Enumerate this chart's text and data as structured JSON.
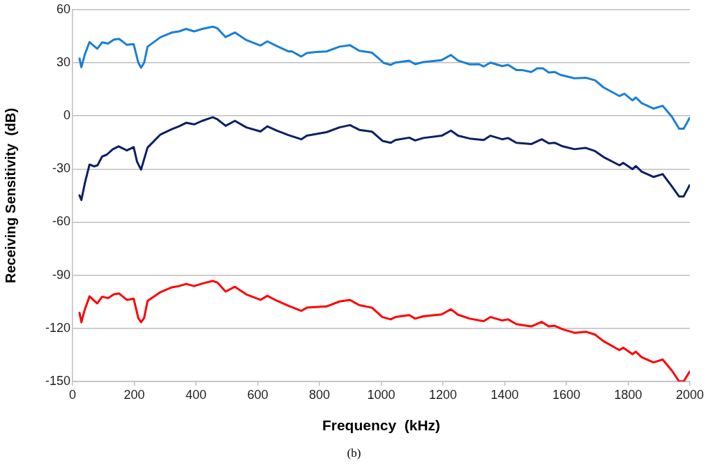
{
  "chart_data": {
    "type": "line",
    "xlabel": "Frequency  (kHz)",
    "ylabel": "Receiving Sensitivity  (dB)",
    "xlim": [
      0,
      2000
    ],
    "xticks": [
      0,
      200,
      400,
      600,
      800,
      1000,
      1200,
      1400,
      1600,
      1800,
      2000
    ],
    "ylim": [
      -150,
      60
    ],
    "yticks": [
      -150,
      -120,
      -90,
      -60,
      -30,
      0,
      30,
      60
    ],
    "grid": "y",
    "legend": false,
    "marker": "none",
    "line_style": "solid",
    "annotations": [
      "(b)"
    ],
    "series": [
      {
        "color": "#1a7fd4",
        "x": [
          22.6,
          28.6,
          40,
          55,
          80,
          96,
          115,
          134,
          151,
          176,
          198,
          213,
          222,
          232,
          243,
          285,
          322,
          345,
          368,
          394,
          420,
          454,
          469,
          496,
          526,
          563,
          609,
          631,
          661,
          699,
          710,
          741,
          759,
          789,
          823,
          865,
          899,
          929,
          970,
          985,
          1008,
          1031,
          1046,
          1091,
          1110,
          1136,
          1196,
          1226,
          1249,
          1287,
          1317,
          1332,
          1354,
          1392,
          1411,
          1438,
          1456,
          1486,
          1505,
          1524,
          1543,
          1562,
          1580,
          1626,
          1663,
          1693,
          1720,
          1772,
          1788,
          1814,
          1825,
          1844,
          1882,
          1912,
          1942,
          1965,
          1980,
          1999
        ],
        "values": [
          32.4,
          27.5,
          34.8,
          41.7,
          37.9,
          41.5,
          40.8,
          43.1,
          43.5,
          40.1,
          40.5,
          30.1,
          27.2,
          30.1,
          39.1,
          44.4,
          47.1,
          47.7,
          49.1,
          47.7,
          49.1,
          50.4,
          49.5,
          44.5,
          47.1,
          42.8,
          39.7,
          42.1,
          39.5,
          36.4,
          36.5,
          33.5,
          35.5,
          36.1,
          36.4,
          39.1,
          39.9,
          36.8,
          35.7,
          33.5,
          29.9,
          28.8,
          30.1,
          31.2,
          29.2,
          30.4,
          31.5,
          34.4,
          31.2,
          29.1,
          29.2,
          27.9,
          30.1,
          28.1,
          28.8,
          25.9,
          25.9,
          24.8,
          26.8,
          26.8,
          24.5,
          24.8,
          23.2,
          21.2,
          21.5,
          20.1,
          16.1,
          11.2,
          12.5,
          8.8,
          10.4,
          7.2,
          4.1,
          5.7,
          -0.5,
          -7.2,
          -7.2,
          -1.2
        ]
      },
      {
        "color": "#0b1f66",
        "x": [
          22.6,
          28.6,
          40,
          55,
          70,
          81,
          96,
          111,
          130,
          149,
          176,
          198,
          209,
          222,
          243,
          285,
          322,
          345,
          368,
          394,
          420,
          454,
          469,
          496,
          526,
          563,
          609,
          631,
          661,
          699,
          741,
          759,
          823,
          865,
          899,
          929,
          970,
          1004,
          1031,
          1046,
          1091,
          1110,
          1136,
          1196,
          1226,
          1249,
          1287,
          1332,
          1354,
          1392,
          1411,
          1438,
          1486,
          1520,
          1543,
          1562,
          1588,
          1626,
          1663,
          1693,
          1720,
          1772,
          1784,
          1814,
          1825,
          1844,
          1882,
          1912,
          1942,
          1965,
          1980,
          1999
        ],
        "values": [
          -44.9,
          -47.5,
          -37.9,
          -27.5,
          -28.5,
          -27.9,
          -22.9,
          -21.9,
          -18.9,
          -17.2,
          -19.5,
          -17.6,
          -25.9,
          -30.3,
          -17.9,
          -10.5,
          -7.5,
          -5.9,
          -3.9,
          -4.8,
          -2.8,
          -0.8,
          -1.9,
          -5.6,
          -2.8,
          -6.5,
          -8.8,
          -5.9,
          -8.3,
          -10.8,
          -13.2,
          -11.2,
          -9.2,
          -6.5,
          -5.2,
          -7.9,
          -8.9,
          -14.1,
          -15.2,
          -13.6,
          -12.3,
          -13.9,
          -12.5,
          -11.2,
          -8.3,
          -11.2,
          -12.8,
          -13.6,
          -11.2,
          -13.2,
          -12.5,
          -15.2,
          -15.9,
          -13.2,
          -15.5,
          -15.2,
          -17.2,
          -18.8,
          -18.1,
          -19.9,
          -23.2,
          -27.9,
          -26.5,
          -30.1,
          -28.3,
          -31.5,
          -34.5,
          -32.9,
          -39.9,
          -45.5,
          -45.5,
          -39.2
        ]
      },
      {
        "color": "#ff0000",
        "x": [
          22.6,
          28.6,
          40,
          55,
          80,
          96,
          115,
          134,
          151,
          176,
          198,
          213,
          222,
          232,
          243,
          285,
          322,
          345,
          368,
          394,
          420,
          454,
          469,
          496,
          526,
          563,
          609,
          631,
          661,
          699,
          741,
          759,
          823,
          865,
          899,
          929,
          970,
          1004,
          1031,
          1046,
          1091,
          1110,
          1136,
          1196,
          1226,
          1249,
          1287,
          1332,
          1354,
          1392,
          1411,
          1438,
          1486,
          1520,
          1543,
          1562,
          1588,
          1626,
          1663,
          1693,
          1720,
          1772,
          1784,
          1814,
          1825,
          1844,
          1882,
          1912,
          1942,
          1965,
          1980,
          1999
        ],
        "values": [
          -111.2,
          -116.5,
          -109.2,
          -101.9,
          -105.9,
          -102.1,
          -102.9,
          -100.8,
          -100.3,
          -103.9,
          -103.2,
          -114.1,
          -116.5,
          -114.1,
          -104.5,
          -99.5,
          -96.8,
          -96.1,
          -94.9,
          -96.1,
          -94.7,
          -93.2,
          -94.1,
          -99.2,
          -96.5,
          -100.8,
          -103.9,
          -101.6,
          -104.3,
          -107.2,
          -110.1,
          -108.3,
          -107.6,
          -104.8,
          -103.9,
          -106.9,
          -108.3,
          -113.6,
          -114.9,
          -113.6,
          -112.5,
          -114.5,
          -113.2,
          -112.1,
          -109.2,
          -112.3,
          -114.5,
          -115.9,
          -113.6,
          -115.5,
          -114.9,
          -117.6,
          -118.9,
          -116.3,
          -118.9,
          -118.5,
          -120.5,
          -122.5,
          -121.9,
          -123.5,
          -127.2,
          -132.3,
          -130.9,
          -134.5,
          -133.2,
          -136.3,
          -139.2,
          -137.6,
          -143.9,
          -149.9,
          -149.9,
          -144.5
        ]
      }
    ]
  }
}
